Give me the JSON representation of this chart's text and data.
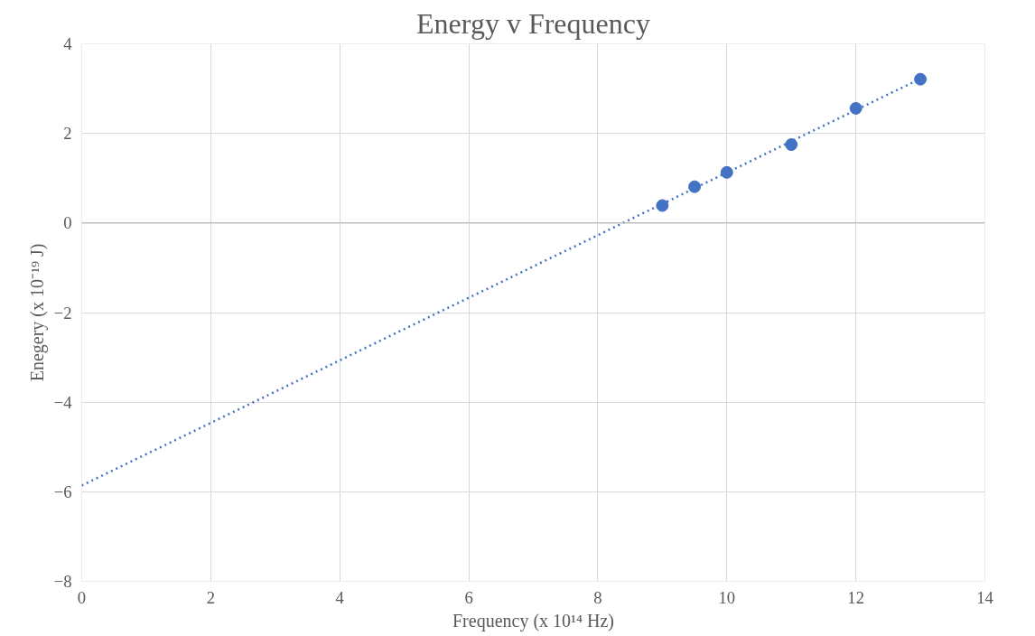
{
  "chart_data": {
    "type": "scatter",
    "title": "Energy v Frequency",
    "xlabel": "Frequency (x 10¹⁴ Hz)",
    "ylabel": "Enegery (x 10⁻¹⁹ J)",
    "x": [
      9,
      9.5,
      10,
      11,
      12,
      13
    ],
    "series": [
      {
        "color": "#4472c4",
        "values": [
          0.39,
          0.81,
          1.13,
          1.75,
          2.56,
          3.21
        ],
        "marker": "circle"
      },
      {
        "type": "line",
        "color": "#4472c4",
        "x": [
          0,
          13
        ],
        "values": [
          -5.86,
          3.22
        ],
        "line_style": "dotted"
      }
    ],
    "xlim": [
      0,
      14
    ],
    "xticks": [
      0,
      2,
      4,
      6,
      8,
      10,
      12,
      14
    ],
    "ylim": [
      -8,
      4
    ],
    "yticks": [
      -8,
      -6,
      -4,
      -2,
      0,
      2,
      4
    ],
    "grid": true
  }
}
